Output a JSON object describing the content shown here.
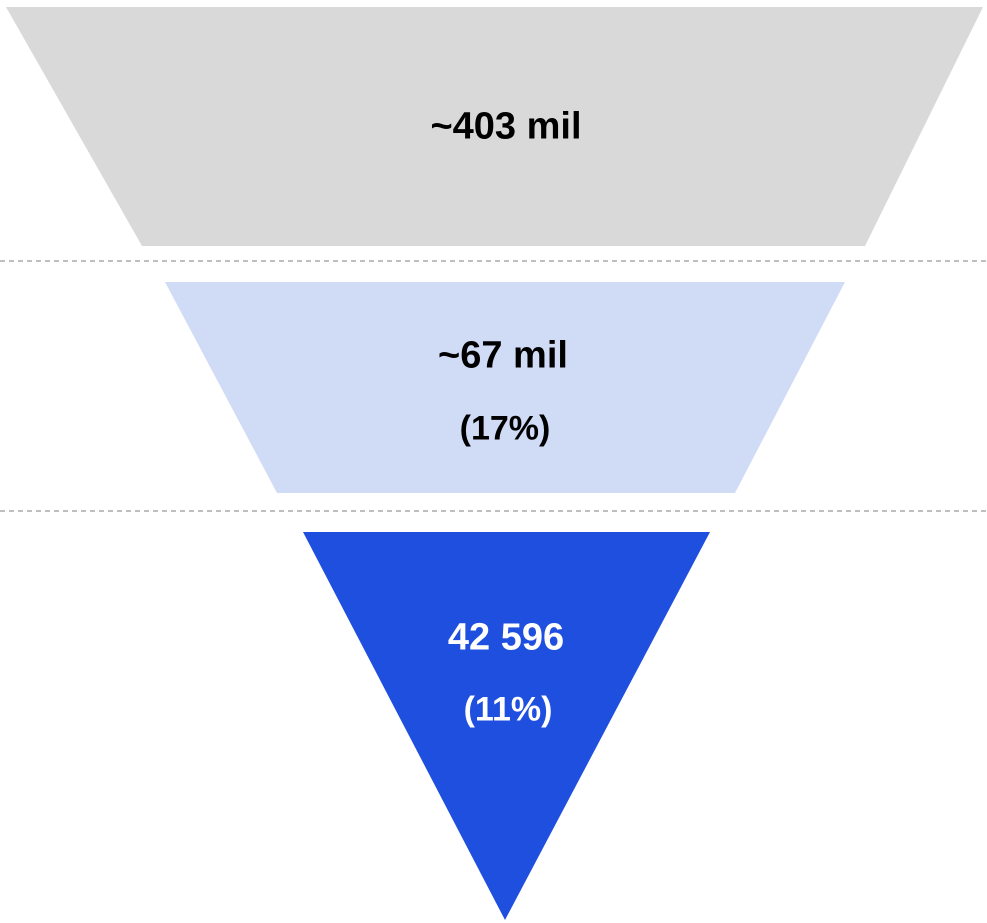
{
  "colors": {
    "tier1_fill": "#d9d9d9",
    "tier2_fill": "#d0dbf6",
    "tier3_fill": "#1f4fdf",
    "dark_text": "#000000",
    "light_text": "#ffffff",
    "divider": "#999999"
  },
  "funnel": {
    "tiers": [
      {
        "value": "~403 mil"
      },
      {
        "value": "~67 mil",
        "percent": "(17%)"
      },
      {
        "value": "42 596",
        "percent": "(11%)"
      }
    ]
  }
}
